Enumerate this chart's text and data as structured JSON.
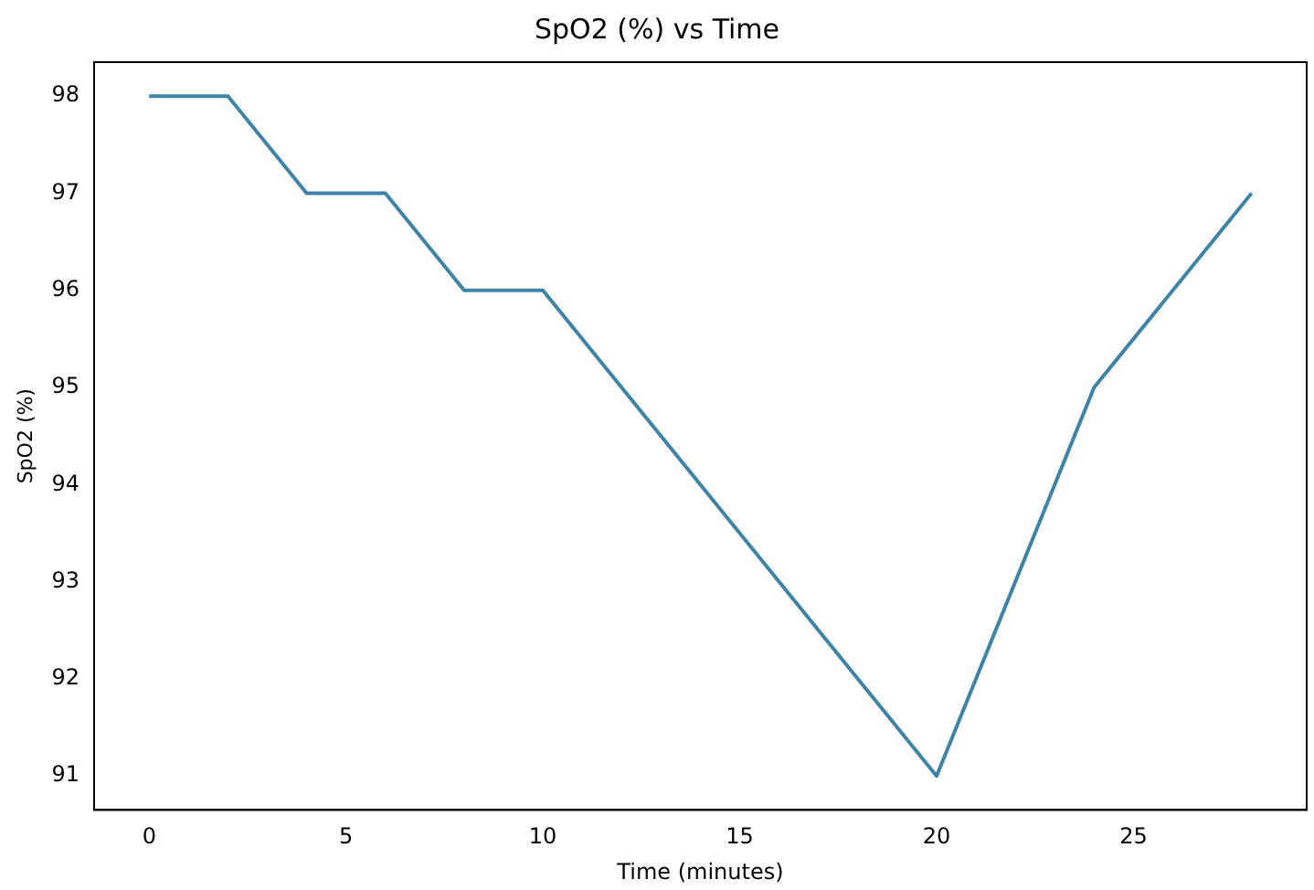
{
  "chart_data": {
    "type": "line",
    "title": "SpO2 (%) vs Time",
    "xlabel": "Time (minutes)",
    "ylabel": "SpO2 (%)",
    "x": [
      0,
      2,
      4,
      6,
      8,
      10,
      20,
      24,
      28
    ],
    "series": [
      {
        "color": "#3f83a6",
        "values": [
          98,
          98,
          97,
          97,
          96,
          96,
          91,
          95,
          97
        ]
      }
    ],
    "xlim": [
      -1.4,
      29.4
    ],
    "xticks": [
      0,
      5,
      10,
      15,
      20,
      25
    ],
    "ylim": [
      90.65,
      98.35
    ],
    "yticks": [
      91,
      92,
      93,
      94,
      95,
      96,
      97,
      98
    ],
    "grid": false,
    "legend": false,
    "marker": "none",
    "line_style": "solid"
  }
}
